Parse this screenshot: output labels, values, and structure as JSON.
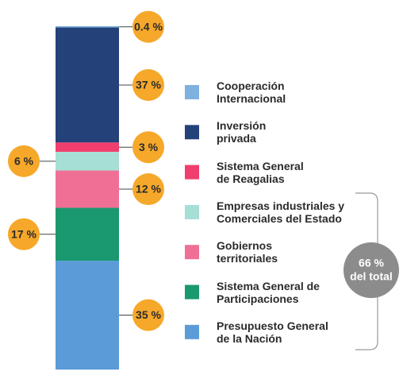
{
  "chart_data": {
    "type": "stacked-bar",
    "series": [
      {
        "name": "Cooperación\nInternacional",
        "color": "#7fb1e0",
        "values": [
          0.4
        ],
        "value_labels": [
          "0.4 %"
        ]
      },
      {
        "name": "Inversión\nprivada",
        "color": "#24417a",
        "values": [
          37
        ],
        "value_labels": [
          "37 %"
        ]
      },
      {
        "name": "Sistema General\nde Reagalias",
        "color": "#f03e6e",
        "values": [
          3
        ],
        "value_labels": [
          "3 %"
        ]
      },
      {
        "name": "Empresas industriales y\nComerciales del Estado",
        "color": "#a6dfd4",
        "values": [
          6
        ],
        "value_labels": [
          "6 %"
        ]
      },
      {
        "name": "Gobiernos\nterritoriales",
        "color": "#f07095",
        "values": [
          12
        ],
        "value_labels": [
          "12 %"
        ]
      },
      {
        "name": "Sistema General de\nParticipaciones",
        "color": "#1a9870",
        "values": [
          17
        ],
        "value_labels": [
          "17 %"
        ]
      },
      {
        "name": "Presupuesto General\nde la Nación",
        "color": "#5b9bd8",
        "values": [
          35
        ],
        "value_labels": [
          "35 %"
        ]
      }
    ],
    "annotation": "66 %",
    "annotation_sub": "del total",
    "bubble_color": "#f6a82a"
  }
}
